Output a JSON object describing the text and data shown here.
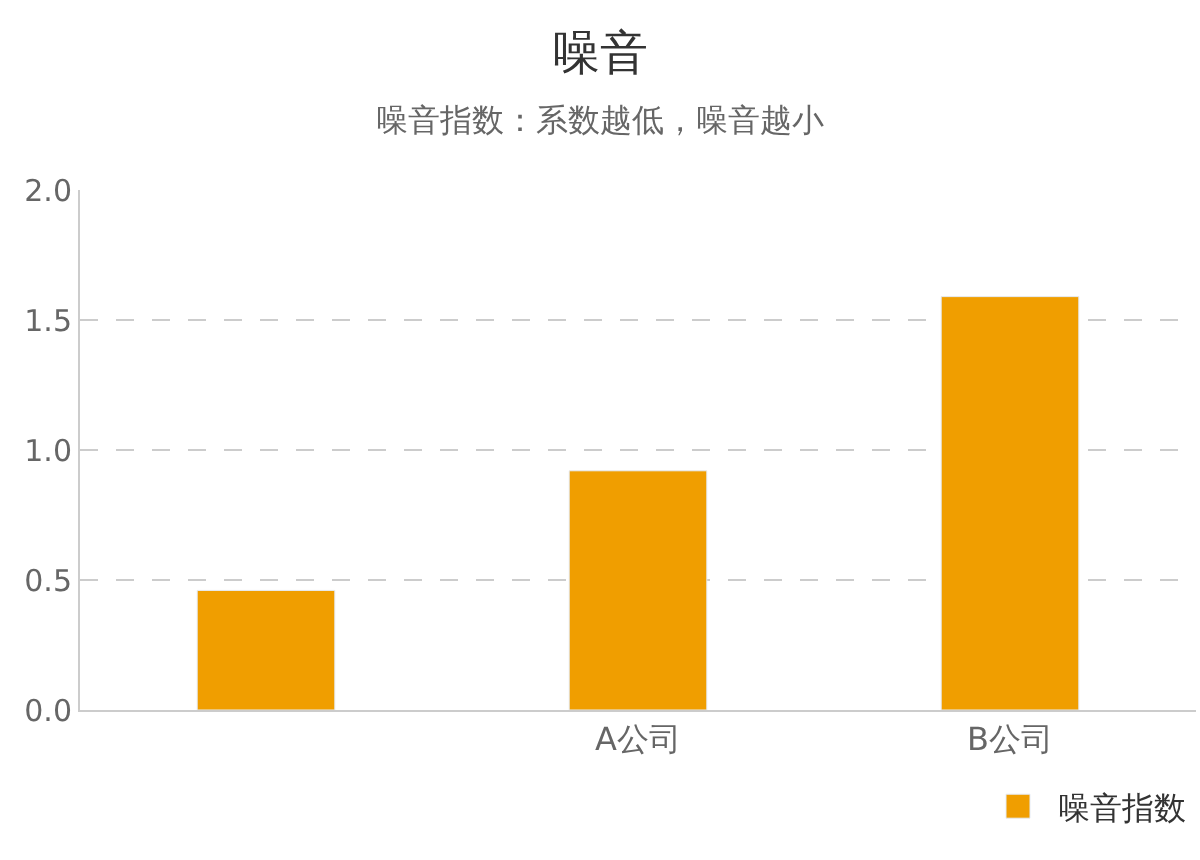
{
  "chart_data": {
    "type": "bar",
    "title": "噪音",
    "subtitle": "噪音指数：系数越低，噪音越小",
    "categories": [
      null,
      "A公司",
      "B公司"
    ],
    "series": [
      {
        "name": "噪音指数",
        "color": "#f09e00",
        "values": [
          0.46,
          0.92,
          1.59
        ]
      }
    ],
    "ylim": [
      0,
      2.0
    ],
    "yticks": [
      {
        "value": 0,
        "label": "0.0"
      },
      {
        "value": 0.5,
        "label": "0.5"
      },
      {
        "value": 1.0,
        "label": "1.0"
      },
      {
        "value": 1.5,
        "label": "1.5"
      },
      {
        "value": 2.0,
        "label": "2.0"
      }
    ],
    "grid": "y",
    "legend": "bottom right"
  }
}
